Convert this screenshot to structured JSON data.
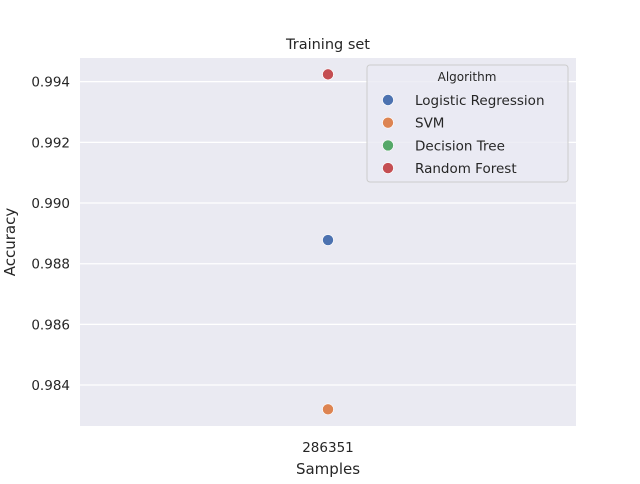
{
  "chart_data": {
    "type": "scatter",
    "title": "Training set",
    "xlabel": "Samples",
    "ylabel": "Accuracy",
    "categories": [
      "286351"
    ],
    "ylim": [
      0.98265,
      0.99478
    ],
    "yticks": [
      0.984,
      0.986,
      0.988,
      0.99,
      0.992,
      0.994
    ],
    "ytick_labels": [
      "0.984",
      "0.986",
      "0.988",
      "0.990",
      "0.992",
      "0.994"
    ],
    "grid": true,
    "legend": {
      "title": "Algorithm",
      "placement": "top-right"
    },
    "series": [
      {
        "name": "Logistic Regression",
        "color": "#4c72b0",
        "values": [
          0.98878
        ]
      },
      {
        "name": "SVM",
        "color": "#dd8452",
        "values": [
          0.9832
        ]
      },
      {
        "name": "Decision Tree",
        "color": "#55a868",
        "values": [
          0.99424
        ]
      },
      {
        "name": "Random Forest",
        "color": "#c44e52",
        "values": [
          0.99424
        ]
      }
    ]
  },
  "colors": {
    "plot_background": "#eaeaf2",
    "grid": "#ffffff",
    "text": "#262626"
  }
}
